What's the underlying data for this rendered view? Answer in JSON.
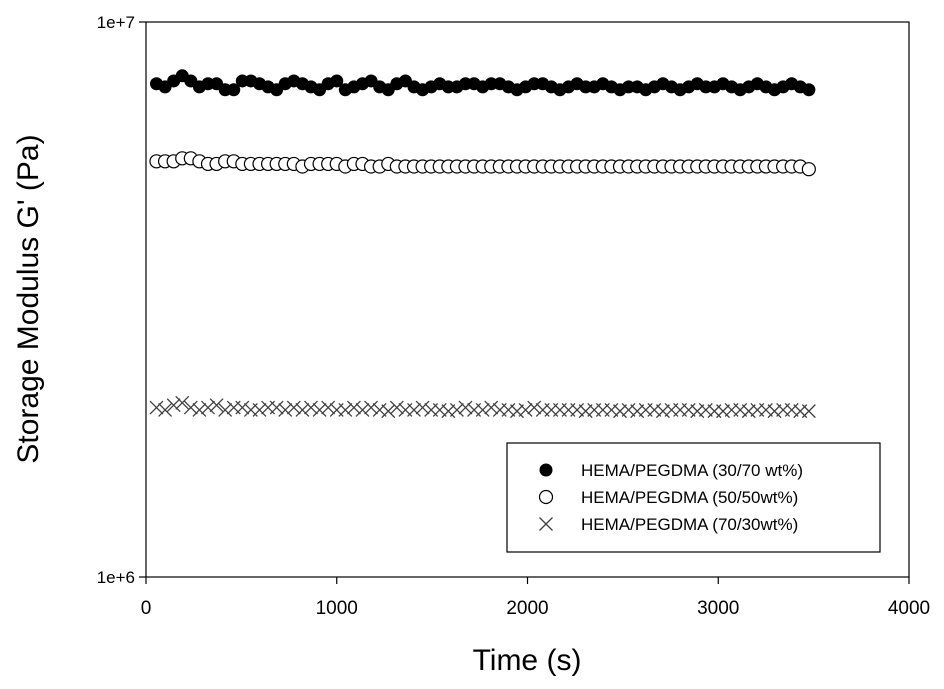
{
  "chart_data": {
    "type": "scatter",
    "title": "",
    "xlabel": "Time (s)",
    "ylabel": "Storage Modulus G' (Pa)",
    "xlim": [
      0,
      4000
    ],
    "ylim": [
      1000000,
      10000000
    ],
    "yscale": "log",
    "xticks": [
      0,
      1000,
      2000,
      3000,
      4000
    ],
    "xtick_labels": [
      "0",
      "1000",
      "2000",
      "3000",
      "4000"
    ],
    "yticks": [
      1000000,
      10000000
    ],
    "ytick_labels": [
      "1e+6",
      "1e+7"
    ],
    "grid": false,
    "legend_position": "bottom-right",
    "series": [
      {
        "name": "HEMA/PEGDMA (30/70 wt%)",
        "marker": "filled-circle",
        "color": "#000000",
        "x_start": 55,
        "x_step": 45,
        "y": [
          7740000,
          7640000,
          7830000,
          8000000,
          7830000,
          7640000,
          7740000,
          7740000,
          7550000,
          7550000,
          7830000,
          7830000,
          7740000,
          7640000,
          7550000,
          7740000,
          7830000,
          7740000,
          7640000,
          7550000,
          7740000,
          7830000,
          7550000,
          7640000,
          7740000,
          7830000,
          7640000,
          7550000,
          7740000,
          7830000,
          7640000,
          7550000,
          7640000,
          7740000,
          7640000,
          7640000,
          7740000,
          7740000,
          7640000,
          7740000,
          7740000,
          7640000,
          7550000,
          7640000,
          7740000,
          7740000,
          7640000,
          7550000,
          7640000,
          7740000,
          7640000,
          7640000,
          7740000,
          7640000,
          7550000,
          7640000,
          7640000,
          7550000,
          7640000,
          7740000,
          7640000,
          7550000,
          7640000,
          7740000,
          7640000,
          7640000,
          7740000,
          7640000,
          7550000,
          7640000,
          7740000,
          7640000,
          7550000,
          7640000,
          7740000,
          7640000,
          7550000
        ]
      },
      {
        "name": "HEMA/PEGDMA (50/50wt%)",
        "marker": "open-circle",
        "color": "#000000",
        "x_start": 55,
        "x_step": 45,
        "y": [
          5610000,
          5610000,
          5610000,
          5680000,
          5680000,
          5610000,
          5550000,
          5550000,
          5610000,
          5610000,
          5550000,
          5550000,
          5550000,
          5550000,
          5550000,
          5550000,
          5550000,
          5490000,
          5550000,
          5550000,
          5550000,
          5550000,
          5490000,
          5550000,
          5550000,
          5490000,
          5490000,
          5550000,
          5490000,
          5490000,
          5490000,
          5490000,
          5490000,
          5490000,
          5490000,
          5490000,
          5490000,
          5490000,
          5490000,
          5490000,
          5490000,
          5490000,
          5490000,
          5490000,
          5490000,
          5490000,
          5490000,
          5490000,
          5490000,
          5490000,
          5490000,
          5490000,
          5490000,
          5490000,
          5490000,
          5490000,
          5490000,
          5490000,
          5490000,
          5490000,
          5490000,
          5490000,
          5490000,
          5490000,
          5490000,
          5490000,
          5490000,
          5490000,
          5490000,
          5490000,
          5490000,
          5490000,
          5490000,
          5490000,
          5490000,
          5490000,
          5430000
        ]
      },
      {
        "name": "HEMA/PEGDMA (70/30wt%)",
        "marker": "x-cross",
        "color": "#404040",
        "x_start": 55,
        "x_step": 45,
        "y": [
          2020000,
          2000000,
          2040000,
          2060000,
          2020000,
          2000000,
          2020000,
          2040000,
          2000000,
          2020000,
          2020000,
          2000000,
          2000000,
          2020000,
          2020000,
          2000000,
          2020000,
          2000000,
          2020000,
          2000000,
          2020000,
          2000000,
          2000000,
          2020000,
          2000000,
          2020000,
          2000000,
          1990000,
          2020000,
          2000000,
          2000000,
          2020000,
          2000000,
          2000000,
          1990000,
          2000000,
          2020000,
          2000000,
          2000000,
          2020000,
          2000000,
          2000000,
          1990000,
          2000000,
          2020000,
          2000000,
          2000000,
          2000000,
          2000000,
          2000000,
          1990000,
          2000000,
          2000000,
          2000000,
          1990000,
          2000000,
          1990000,
          2000000,
          2000000,
          1990000,
          2000000,
          2000000,
          2000000,
          1990000,
          2000000,
          1990000,
          1990000,
          2000000,
          2000000,
          1990000,
          2000000,
          2000000,
          1990000,
          2000000,
          2000000,
          1990000,
          1990000
        ]
      }
    ]
  }
}
